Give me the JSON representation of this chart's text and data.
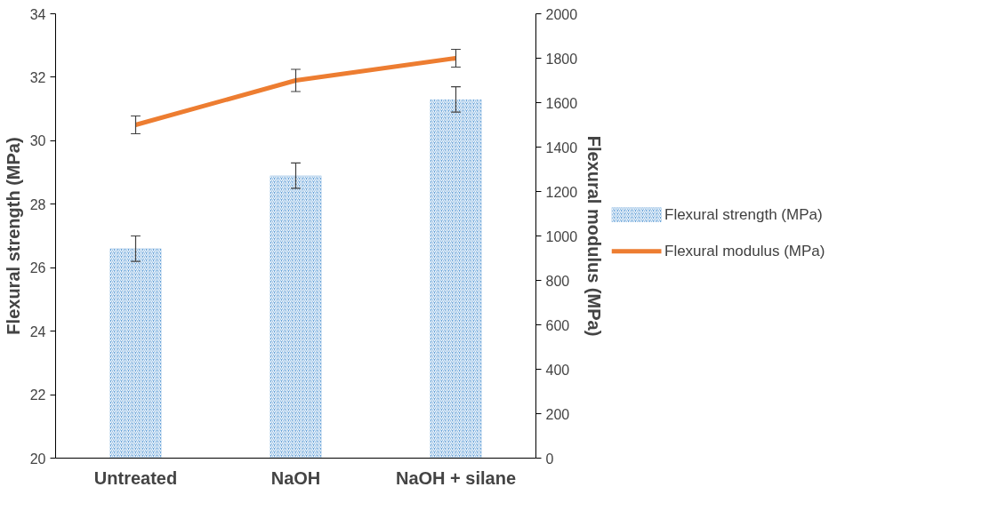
{
  "chart_data": {
    "type": "bar",
    "categories": [
      "Untreated",
      "NaOH",
      "NaOH + silane"
    ],
    "ylabel": "Flexural strength (MPa)",
    "y2label": "Flexural modulus (MPa)",
    "ylim": [
      20,
      34
    ],
    "yticks": [
      20,
      22,
      24,
      26,
      28,
      30,
      32,
      34
    ],
    "y2lim": [
      0,
      2000
    ],
    "y2ticks": [
      0,
      200,
      400,
      600,
      800,
      1000,
      1200,
      1400,
      1600,
      1800,
      2000
    ],
    "series": [
      {
        "name": "Flexural strength (MPa)",
        "color": "#5b9bd5",
        "values": [
          26.6,
          28.9,
          31.3
        ],
        "errors": [
          0.4,
          0.4,
          0.4
        ]
      },
      {
        "name": "Flexural modulus (MPa)",
        "type": "line",
        "axis": "y2",
        "color": "#ed7d31",
        "values": [
          1500,
          1700,
          1800
        ],
        "errors": [
          40,
          50,
          40
        ]
      }
    ],
    "grid": false,
    "legend": "right",
    "marker": "none",
    "line_style": "solid"
  }
}
